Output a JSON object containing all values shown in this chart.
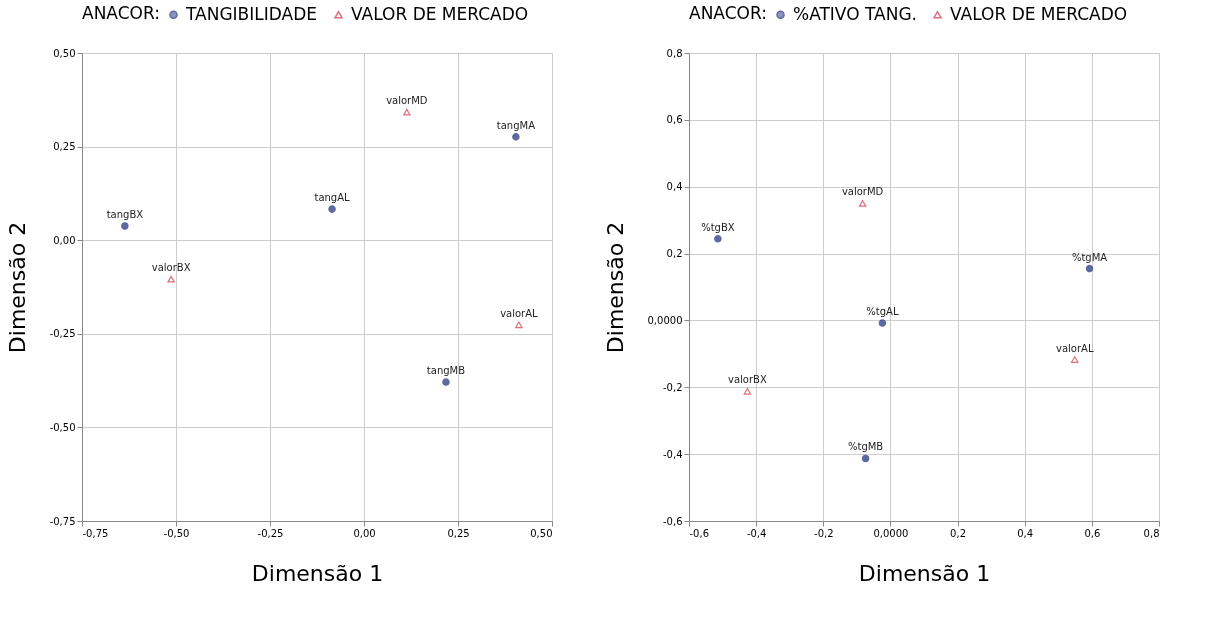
{
  "chart_data": [
    {
      "type": "scatter",
      "legend_title": "ANACOR:",
      "legend": "top",
      "xlabel": "Dimensão 1",
      "ylabel": "Dimensão 2",
      "grid": true,
      "xlim": [
        -0.75,
        0.5
      ],
      "ylim": [
        -0.75,
        0.5
      ],
      "xticks": [
        {
          "value": -0.75,
          "label": "-0,75"
        },
        {
          "value": -0.5,
          "label": "-0,50"
        },
        {
          "value": -0.25,
          "label": "-0,25"
        },
        {
          "value": 0,
          "label": "0,00"
        },
        {
          "value": 0.25,
          "label": "0,25"
        },
        {
          "value": 0.5,
          "label": "0,50"
        }
      ],
      "yticks": [
        {
          "value": -0.75,
          "label": "-0,75"
        },
        {
          "value": -0.5,
          "label": "-0,50"
        },
        {
          "value": -0.25,
          "label": "-0,25"
        },
        {
          "value": 0,
          "label": "0,00"
        },
        {
          "value": 0.25,
          "label": "0,25"
        },
        {
          "value": 0.5,
          "label": "0,50"
        }
      ],
      "series": [
        {
          "name": "TANGIBILIDADE",
          "color": "#1b2a78",
          "marker": "circle",
          "x": [
            -0.636,
            -0.085,
            0.404,
            0.218
          ],
          "values": [
            0.038,
            0.083,
            0.276,
            -0.379
          ]
        },
        {
          "name": "VALOR DE MERCADO",
          "color": "#d0314a",
          "marker": "triangle",
          "x": [
            -0.513,
            0.114,
            0.412
          ],
          "values": [
            -0.104,
            0.342,
            -0.226
          ]
        }
      ],
      "annotations": [
        {
          "text": "tangBX",
          "x": -0.636,
          "y": 0.038
        },
        {
          "text": "tangAL",
          "x": -0.085,
          "y": 0.083
        },
        {
          "text": "tangMA",
          "x": 0.404,
          "y": 0.276
        },
        {
          "text": "tangMB",
          "x": 0.218,
          "y": -0.379
        },
        {
          "text": "valorBX",
          "x": -0.513,
          "y": -0.104
        },
        {
          "text": "valorMD",
          "x": 0.114,
          "y": 0.342
        },
        {
          "text": "valorAL",
          "x": 0.412,
          "y": -0.226
        }
      ]
    },
    {
      "type": "scatter",
      "legend_title": "ANACOR:",
      "legend": "top",
      "xlabel": "Dimensão 1",
      "ylabel": "Dimensão 2",
      "grid": true,
      "xlim": [
        -0.6,
        0.8
      ],
      "ylim": [
        -0.6,
        0.8
      ],
      "xticks": [
        {
          "value": -0.6,
          "label": "-0,6"
        },
        {
          "value": -0.4,
          "label": "-0,4"
        },
        {
          "value": -0.2,
          "label": "-0,2"
        },
        {
          "value": 0,
          "label": "0,0000"
        },
        {
          "value": 0.2,
          "label": "0,2"
        },
        {
          "value": 0.4,
          "label": "0,4"
        },
        {
          "value": 0.6,
          "label": "0,6"
        },
        {
          "value": 0.8,
          "label": "0,8"
        }
      ],
      "yticks": [
        {
          "value": -0.6,
          "label": "-0,6"
        },
        {
          "value": -0.4,
          "label": "-0,4"
        },
        {
          "value": -0.2,
          "label": "-0,2"
        },
        {
          "value": 0,
          "label": "0,0000"
        },
        {
          "value": 0.2,
          "label": "0,2"
        },
        {
          "value": 0.4,
          "label": "0,4"
        },
        {
          "value": 0.6,
          "label": "0,6"
        },
        {
          "value": 0.8,
          "label": "0,8"
        }
      ],
      "series": [
        {
          "name": "%ATIVO TANG.",
          "color": "#1b2a78",
          "marker": "circle",
          "x": [
            -0.514,
            0.593,
            -0.024,
            -0.074
          ],
          "values": [
            0.244,
            0.155,
            -0.008,
            -0.413
          ]
        },
        {
          "name": "VALOR DE MERCADO",
          "color": "#d0314a",
          "marker": "triangle",
          "x": [
            -0.083,
            0.549,
            -0.426
          ],
          "values": [
            0.35,
            -0.117,
            -0.212
          ]
        }
      ],
      "annotations": [
        {
          "text": "%tgBX",
          "x": -0.514,
          "y": 0.244
        },
        {
          "text": "%tgMA",
          "x": 0.593,
          "y": 0.155
        },
        {
          "text": "%tgAL",
          "x": -0.024,
          "y": -0.008
        },
        {
          "text": "%tgMB",
          "x": -0.074,
          "y": -0.413
        },
        {
          "text": "valorMD",
          "x": -0.083,
          "y": 0.35
        },
        {
          "text": "valorAL",
          "x": 0.549,
          "y": -0.117
        },
        {
          "text": "valorBX",
          "x": -0.426,
          "y": -0.212
        }
      ]
    }
  ]
}
